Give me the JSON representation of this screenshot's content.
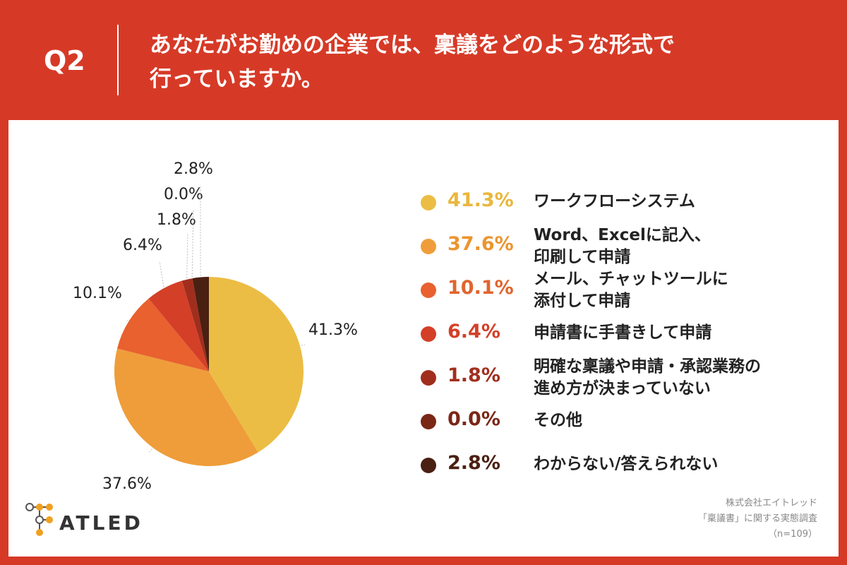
{
  "header": {
    "question_no": "Q2",
    "title_line1": "あなたがお勤めの企業では、稟議をどのような形式で",
    "title_line2": "行っていますか。"
  },
  "chart_data": {
    "type": "pie",
    "slices": [
      {
        "label": "ワークフローシステム",
        "value": 41.3,
        "pct_label": "41.3%",
        "color": "#ecbd44"
      },
      {
        "label": "Word、Excelに記入、\n印刷して申請",
        "value": 37.6,
        "pct_label": "37.6%",
        "color": "#ef9d3a"
      },
      {
        "label": "メール、チャットツールに\n添付して申請",
        "value": 10.1,
        "pct_label": "10.1%",
        "color": "#e8612f"
      },
      {
        "label": "申請書に手書きして申請",
        "value": 6.4,
        "pct_label": "6.4%",
        "color": "#d43f28"
      },
      {
        "label": "明確な稟議や申請・承認業務の\n進め方が決まっていない",
        "value": 1.8,
        "pct_label": "1.8%",
        "color": "#a12e1d"
      },
      {
        "label": "その他",
        "value": 0.0,
        "pct_label": "0.0%",
        "color": "#7a2716"
      },
      {
        "label": "わからない/答えられない",
        "value": 2.8,
        "pct_label": "2.8%",
        "color": "#4a2013"
      }
    ]
  },
  "legend_pct_colors": [
    "#e9b73b",
    "#eb9530",
    "#e0652f",
    "#d43f28",
    "#a12e1d",
    "#7a2716",
    "#4a2013"
  ],
  "brand": {
    "name": "ATLED"
  },
  "footer": {
    "company": "株式会社エイトレッド",
    "survey": "「稟議書」に関する実態調査",
    "sample": "（n=109）"
  }
}
